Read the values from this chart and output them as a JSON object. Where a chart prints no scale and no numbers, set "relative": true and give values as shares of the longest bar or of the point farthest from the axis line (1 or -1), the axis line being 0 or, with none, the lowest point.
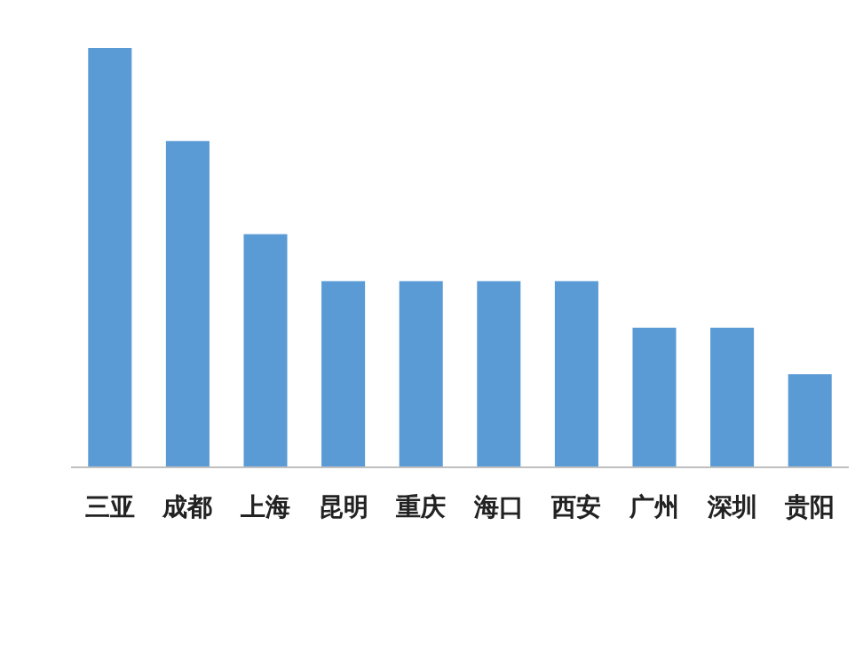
{
  "chart_data": {
    "type": "bar",
    "relative": true,
    "categories": [
      "三亚",
      "成都",
      "上海",
      "昆明",
      "重庆",
      "海口",
      "西安",
      "广州",
      "深圳",
      "贵阳"
    ],
    "values": [
      1,
      0.778,
      0.556,
      0.444,
      0.444,
      0.444,
      0.444,
      0.333,
      0.333,
      0.222
    ],
    "color": "#5b9bd5"
  }
}
